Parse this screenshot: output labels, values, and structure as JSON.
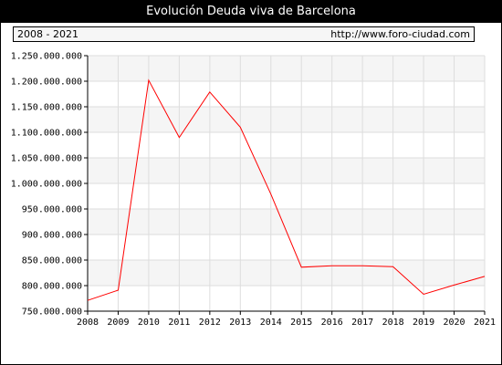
{
  "header": {
    "title": "Evolución Deuda viva de Barcelona",
    "period": "2008 - 2021",
    "source": "http://www.foro-ciudad.com"
  },
  "colors": {
    "line": "#ff0000",
    "band": "#f5f5f5",
    "grid": "#dddddd"
  },
  "chart_data": {
    "type": "line",
    "title": "Evolución Deuda viva de Barcelona",
    "x": [
      "2008",
      "2009",
      "2010",
      "2011",
      "2012",
      "2013",
      "2014",
      "2015",
      "2016",
      "2017",
      "2018",
      "2019",
      "2020",
      "2021"
    ],
    "series": [
      {
        "values": [
          771000000,
          791000000,
          1202000000,
          1090000000,
          1179000000,
          1110000000,
          979000000,
          836000000,
          839000000,
          839000000,
          837000000,
          783000000,
          801000000,
          818000000
        ]
      }
    ],
    "ylim": [
      750000000,
      1250000000
    ],
    "y_ticks": [
      "750.000.000",
      "800.000.000",
      "850.000.000",
      "900.000.000",
      "950.000.000",
      "1.000.000.000",
      "1.050.000.000",
      "1.100.000.000",
      "1.150.000.000",
      "1.200.000.000",
      "1.250.000.000"
    ],
    "y_tick_values": [
      750000000,
      800000000,
      850000000,
      900000000,
      950000000,
      1000000000,
      1050000000,
      1100000000,
      1150000000,
      1200000000,
      1250000000
    ],
    "grid": true,
    "legend": "none"
  }
}
